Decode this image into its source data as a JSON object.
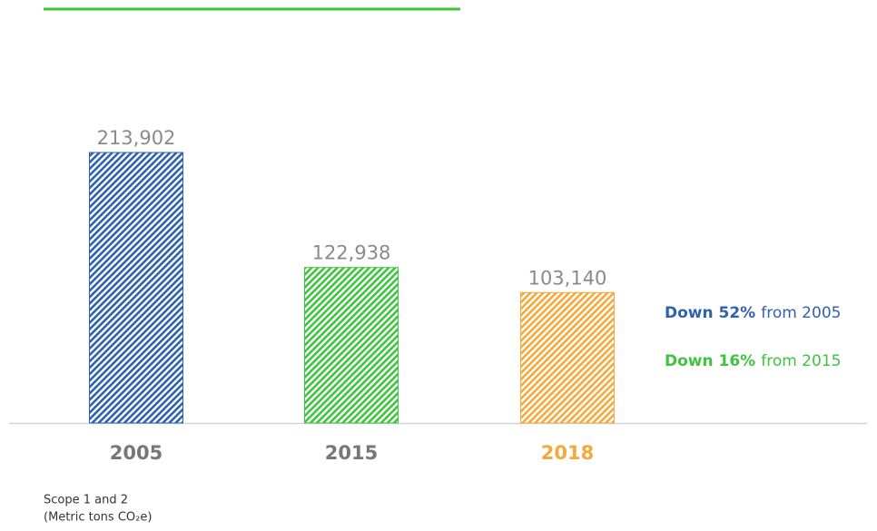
{
  "chart_data": {
    "type": "bar",
    "categories": [
      "2005",
      "2015",
      "2018"
    ],
    "values": [
      213902,
      122938,
      103140
    ],
    "value_labels": [
      "213,902",
      "122,938",
      "103,140"
    ],
    "colors": [
      "#2f62ad",
      "#3ec43e",
      "#f3a93c"
    ],
    "category_colors": [
      "#777777",
      "#777777",
      "#f3a93c"
    ],
    "annotations": [
      {
        "bold": "Down 52%",
        "text": "from 2005",
        "color": "#2f62ad"
      },
      {
        "bold": "Down 16%",
        "text": "from 2015",
        "color": "#3ec43e"
      }
    ],
    "footnote": [
      "Scope 1 and 2",
      "(Metric tons CO₂e)"
    ]
  }
}
